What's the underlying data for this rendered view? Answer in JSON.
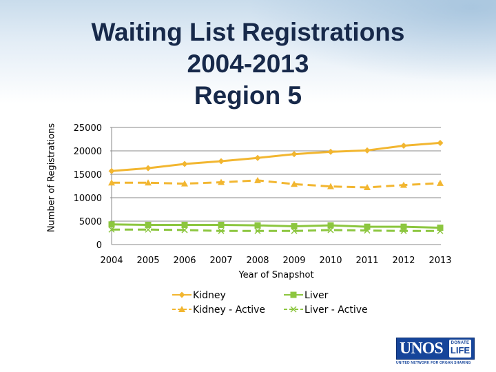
{
  "title": {
    "line1": "Waiting List Registrations",
    "line2": "2004-2013",
    "line3": "Region 5"
  },
  "chart_data": {
    "type": "line",
    "x": [
      "2004",
      "2005",
      "2006",
      "2007",
      "2008",
      "2009",
      "2010",
      "2011",
      "2012",
      "2013"
    ],
    "xlabel": "Year of Snapshot",
    "ylabel": "Number of Registrations",
    "ylim": [
      0,
      25000
    ],
    "yticks": [
      0,
      5000,
      10000,
      15000,
      20000,
      25000
    ],
    "grid": true,
    "legend": "bottom",
    "series": [
      {
        "name": "Kidney",
        "color": "#f2b630",
        "dash": "solid",
        "marker": "diamond",
        "values": [
          15700,
          16300,
          17200,
          17800,
          18500,
          19300,
          19800,
          20100,
          21100,
          21700
        ]
      },
      {
        "name": "Kidney - Active",
        "color": "#f2b630",
        "dash": "dashed",
        "marker": "triangle",
        "values": [
          13200,
          13200,
          13000,
          13300,
          13700,
          12900,
          12400,
          12200,
          12700,
          13100
        ]
      },
      {
        "name": "Liver",
        "color": "#8cc63f",
        "dash": "solid",
        "marker": "square",
        "values": [
          4300,
          4200,
          4200,
          4200,
          4100,
          3900,
          4100,
          3800,
          3800,
          3600
        ]
      },
      {
        "name": "Liver - Active",
        "color": "#8cc63f",
        "dash": "dashed",
        "marker": "x",
        "values": [
          3200,
          3200,
          3100,
          2900,
          2900,
          2900,
          3100,
          3000,
          2900,
          2900
        ]
      }
    ]
  },
  "logo": {
    "wordmark": "UNOS",
    "badge_top": "DONATE",
    "badge_main": "LIFE",
    "tagline": "UNITED NETWORK FOR ORGAN SHARING",
    "color": "#16459a"
  }
}
